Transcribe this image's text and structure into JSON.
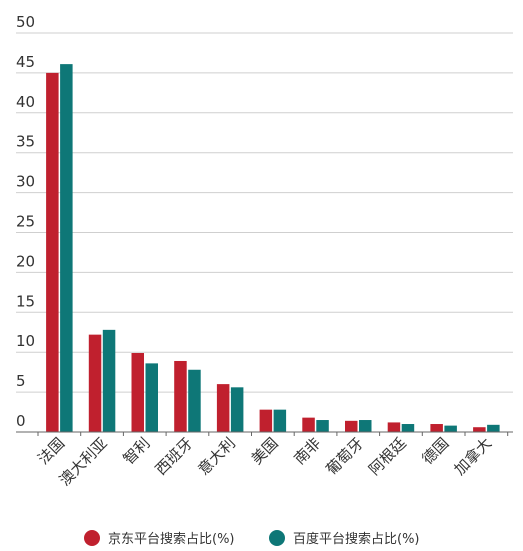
{
  "chart_data": {
    "type": "bar",
    "categories": [
      "法国",
      "澳大利亚",
      "智利",
      "西班牙",
      "意大利",
      "美国",
      "南非",
      "葡萄牙",
      "阿根廷",
      "德国",
      "加拿大"
    ],
    "series": [
      {
        "name": "京东平台搜索占比(%)",
        "color": "#c0202e",
        "values": [
          45.0,
          12.2,
          9.9,
          8.9,
          6.0,
          2.8,
          1.8,
          1.4,
          1.2,
          1.0,
          0.6
        ]
      },
      {
        "name": "百度平台搜索占比(%)",
        "color": "#0e7777",
        "values": [
          46.1,
          12.8,
          8.6,
          7.8,
          5.6,
          2.8,
          1.5,
          1.5,
          1.0,
          0.8,
          0.9
        ]
      }
    ],
    "ylim": [
      0,
      50
    ],
    "yticks": [
      0,
      5,
      10,
      15,
      20,
      25,
      30,
      35,
      40,
      45,
      50
    ],
    "grid": true,
    "legend_position": "bottom"
  }
}
